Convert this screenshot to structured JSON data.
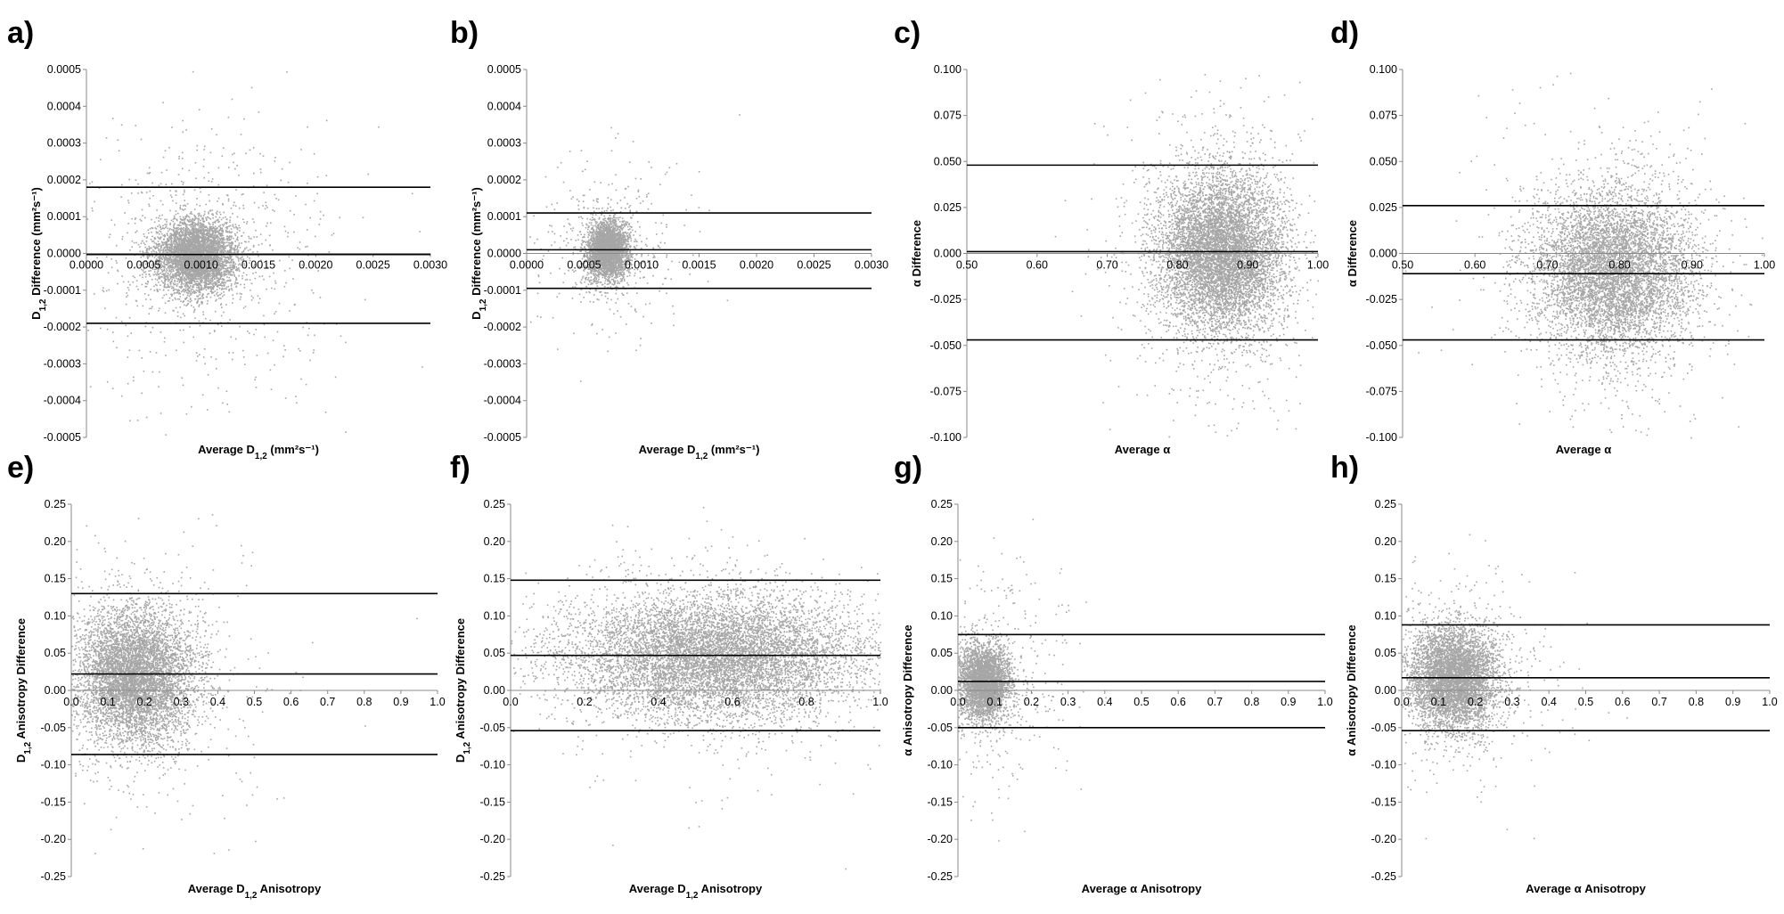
{
  "chart_data": [
    {
      "id": "a",
      "type": "scatter",
      "panel_label": "a)",
      "xlabel": "Average D1,2 (mm²s⁻¹)",
      "xlabel_parts": {
        "base": "Average D",
        "sub": "1,2",
        "tail": " (mm²s⁻¹)"
      },
      "ylabel": "D1,2 Difference (mm²s⁻¹)",
      "ylabel_parts": {
        "base": "D",
        "sub": "1,2",
        "tail": " Difference (mm²s⁻¹)"
      },
      "xlim": [
        0,
        0.003
      ],
      "ylim": [
        -0.0005,
        0.0005
      ],
      "xticks": [
        0,
        0.0005,
        0.001,
        0.0015,
        0.002,
        0.0025,
        0.003
      ],
      "xtick_labels": [
        "0.0000",
        "0.0005",
        "0.0010",
        "0.0015",
        "0.0020",
        "0.0025",
        "0.0030"
      ],
      "yticks": [
        0.0005,
        0.0004,
        0.0003,
        0.0002,
        0.0001,
        0,
        -0.0001,
        -0.0002,
        -0.0003,
        -0.0004,
        -0.0005
      ],
      "ytick_labels": [
        "0.0005",
        "0.0004",
        "0.0003",
        "0.0002",
        "0.0001",
        "0.0000",
        "-0.0001",
        "-0.0002",
        "-0.0003",
        "-0.0004",
        "-0.0005"
      ],
      "reference_lines": [
        0.00018,
        -3e-06,
        -0.00019
      ],
      "cloud": {
        "cx": 0.00095,
        "cy": -5e-06,
        "sx": 0.00018,
        "sy": 5e-05,
        "n": 4500,
        "scatter_n": 700,
        "scatter_sx": 0.0006,
        "scatter_sy": 0.00018
      }
    },
    {
      "id": "b",
      "type": "scatter",
      "panel_label": "b)",
      "xlabel": "Average D1,2 (mm²s⁻¹)",
      "xlabel_parts": {
        "base": "Average D",
        "sub": "1,2",
        "tail": " (mm²s⁻¹)"
      },
      "ylabel": "D1,2 Difference (mm²s⁻¹)",
      "ylabel_parts": {
        "base": "D",
        "sub": "1,2",
        "tail": " Difference (mm²s⁻¹)"
      },
      "xlim": [
        0,
        0.003
      ],
      "ylim": [
        -0.0005,
        0.0005
      ],
      "xticks": [
        0,
        0.0005,
        0.001,
        0.0015,
        0.002,
        0.0025,
        0.003
      ],
      "xtick_labels": [
        "0.0000",
        "0.0005",
        "0.0010",
        "0.0015",
        "0.0020",
        "0.0025",
        "0.0030"
      ],
      "yticks": [
        0.0005,
        0.0004,
        0.0003,
        0.0002,
        0.0001,
        0,
        -0.0001,
        -0.0002,
        -0.0003,
        -0.0004,
        -0.0005
      ],
      "ytick_labels": [
        "0.0005",
        "0.0004",
        "0.0003",
        "0.0002",
        "0.0001",
        "0.0000",
        "-0.0001",
        "-0.0002",
        "-0.0003",
        "-0.0004",
        "-0.0005"
      ],
      "reference_lines": [
        0.00011,
        1e-05,
        -9.5e-05
      ],
      "cloud": {
        "cx": 0.0007,
        "cy": 1e-05,
        "sx": 9e-05,
        "sy": 4e-05,
        "n": 3000,
        "scatter_n": 400,
        "scatter_sx": 0.00035,
        "scatter_sy": 0.00012
      }
    },
    {
      "id": "c",
      "type": "scatter",
      "panel_label": "c)",
      "xlabel": "Average α",
      "ylabel": "α Difference",
      "xlim": [
        0.5,
        1.0
      ],
      "ylim": [
        -0.1,
        0.1
      ],
      "xticks": [
        0.5,
        0.6,
        0.7,
        0.8,
        0.9,
        1.0
      ],
      "xtick_labels": [
        "0.50",
        "0.60",
        "0.70",
        "0.80",
        "0.90",
        "1.00"
      ],
      "yticks": [
        0.1,
        0.075,
        0.05,
        0.025,
        0,
        -0.025,
        -0.05,
        -0.075,
        -0.1
      ],
      "ytick_labels": [
        "0.100",
        "0.075",
        "0.050",
        "0.025",
        "0.000",
        "-0.025",
        "-0.050",
        "-0.075",
        "-0.100"
      ],
      "reference_lines": [
        0.048,
        0.001,
        -0.047
      ],
      "cloud": {
        "cx": 0.86,
        "cy": 0.0,
        "sx": 0.045,
        "sy": 0.022,
        "n": 7000,
        "scatter_n": 600,
        "scatter_sx": 0.08,
        "scatter_sy": 0.05
      }
    },
    {
      "id": "d",
      "type": "scatter",
      "panel_label": "d)",
      "xlabel": "Average α",
      "ylabel": "α Difference",
      "xlim": [
        0.5,
        1.0
      ],
      "ylim": [
        -0.1,
        0.1
      ],
      "xticks": [
        0.5,
        0.6,
        0.7,
        0.8,
        0.9,
        1.0
      ],
      "xtick_labels": [
        "0.50",
        "0.60",
        "0.70",
        "0.80",
        "0.90",
        "1.00"
      ],
      "yticks": [
        0.1,
        0.075,
        0.05,
        0.025,
        0,
        -0.025,
        -0.05,
        -0.075,
        -0.1
      ],
      "ytick_labels": [
        "0.100",
        "0.075",
        "0.050",
        "0.025",
        "0.000",
        "-0.025",
        "-0.050",
        "-0.075",
        "-0.100"
      ],
      "reference_lines": [
        0.026,
        -0.011,
        -0.047
      ],
      "cloud": {
        "cx": 0.79,
        "cy": -0.01,
        "sx": 0.055,
        "sy": 0.022,
        "n": 6000,
        "scatter_n": 600,
        "scatter_sx": 0.09,
        "scatter_sy": 0.045
      }
    },
    {
      "id": "e",
      "type": "scatter",
      "panel_label": "e)",
      "xlabel": "Average D1,2 Anisotropy",
      "xlabel_parts": {
        "base": "Average D",
        "sub": "1,2",
        "tail": " Anisotropy"
      },
      "ylabel": "D1,2 Anisotropy Difference",
      "ylabel_parts": {
        "base": "D",
        "sub": "1,2",
        "tail": " Anisotropy Difference"
      },
      "xlim": [
        0,
        1.0
      ],
      "ylim": [
        -0.25,
        0.25
      ],
      "xticks": [
        0,
        0.1,
        0.2,
        0.3,
        0.4,
        0.5,
        0.6,
        0.7,
        0.8,
        0.9,
        1.0
      ],
      "xtick_labels": [
        "0.0",
        "0.1",
        "0.2",
        "0.3",
        "0.4",
        "0.5",
        "0.6",
        "0.7",
        "0.8",
        "0.9",
        "1.0"
      ],
      "yticks": [
        0.25,
        0.2,
        0.15,
        0.1,
        0.05,
        0,
        -0.05,
        -0.1,
        -0.15,
        -0.2,
        -0.25
      ],
      "ytick_labels": [
        "0.25",
        "0.20",
        "0.15",
        "0.10",
        "0.05",
        "0.00",
        "-0.05",
        "-0.10",
        "-0.15",
        "-0.20",
        "-0.25"
      ],
      "reference_lines": [
        0.13,
        0.022,
        -0.086
      ],
      "cloud": {
        "cx": 0.17,
        "cy": 0.02,
        "sx": 0.08,
        "sy": 0.045,
        "n": 6000,
        "scatter_n": 600,
        "scatter_sx": 0.2,
        "scatter_sy": 0.09
      }
    },
    {
      "id": "f",
      "type": "scatter",
      "panel_label": "f)",
      "xlabel": "Average D1,2 Anisotropy",
      "xlabel_parts": {
        "base": "Average D",
        "sub": "1,2",
        "tail": " Anisotropy"
      },
      "ylabel": "D1,2 Anisotropy Difference",
      "ylabel_parts": {
        "base": "D",
        "sub": "1,2",
        "tail": " Anisotropy Difference"
      },
      "xlim": [
        0,
        1.0
      ],
      "ylim": [
        -0.25,
        0.25
      ],
      "xticks": [
        0,
        0.2,
        0.4,
        0.6,
        0.8,
        1.0
      ],
      "xtick_labels": [
        "0.0",
        "0.2",
        "0.4",
        "0.6",
        "0.8",
        "1.0"
      ],
      "yticks": [
        0.25,
        0.2,
        0.15,
        0.1,
        0.05,
        0,
        -0.05,
        -0.1,
        -0.15,
        -0.2,
        -0.25
      ],
      "ytick_labels": [
        "0.25",
        "0.20",
        "0.15",
        "0.10",
        "0.05",
        "0.00",
        "-0.05",
        "-0.10",
        "-0.15",
        "-0.20",
        "-0.25"
      ],
      "reference_lines": [
        0.148,
        0.047,
        -0.054
      ],
      "cloud": {
        "cx": 0.55,
        "cy": 0.047,
        "sx": 0.2,
        "sy": 0.042,
        "n": 8000,
        "scatter_n": 500,
        "scatter_sx": 0.25,
        "scatter_sy": 0.08
      }
    },
    {
      "id": "g",
      "type": "scatter",
      "panel_label": "g)",
      "xlabel": "Average α Anisotropy",
      "ylabel": "α Anisotropy Difference",
      "xlim": [
        0,
        1.0
      ],
      "ylim": [
        -0.25,
        0.25
      ],
      "xticks": [
        0,
        0.1,
        0.2,
        0.3,
        0.4,
        0.5,
        0.6,
        0.7,
        0.8,
        0.9,
        1.0
      ],
      "xtick_labels": [
        "0.0",
        "0.1",
        "0.2",
        "0.3",
        "0.4",
        "0.5",
        "0.6",
        "0.7",
        "0.8",
        "0.9",
        "1.0"
      ],
      "yticks": [
        0.25,
        0.2,
        0.15,
        0.1,
        0.05,
        0,
        -0.05,
        -0.1,
        -0.15,
        -0.2,
        -0.25
      ],
      "ytick_labels": [
        "0.25",
        "0.20",
        "0.15",
        "0.10",
        "0.05",
        "0.00",
        "-0.05",
        "-0.10",
        "-0.15",
        "-0.20",
        "-0.25"
      ],
      "reference_lines": [
        0.075,
        0.012,
        -0.05
      ],
      "cloud": {
        "cx": 0.07,
        "cy": 0.012,
        "sx": 0.035,
        "sy": 0.025,
        "n": 3500,
        "scatter_n": 500,
        "scatter_sx": 0.12,
        "scatter_sy": 0.08
      }
    },
    {
      "id": "h",
      "type": "scatter",
      "panel_label": "h)",
      "xlabel": "Average α Anisotropy",
      "ylabel": "α Anisotropy Difference",
      "xlim": [
        0,
        1.0
      ],
      "ylim": [
        -0.25,
        0.25
      ],
      "xticks": [
        0,
        0.1,
        0.2,
        0.3,
        0.4,
        0.5,
        0.6,
        0.7,
        0.8,
        0.9,
        1.0
      ],
      "xtick_labels": [
        "0.0",
        "0.1",
        "0.2",
        "0.3",
        "0.4",
        "0.5",
        "0.6",
        "0.7",
        "0.8",
        "0.9",
        "1.0"
      ],
      "yticks": [
        0.25,
        0.2,
        0.15,
        0.1,
        0.05,
        0,
        -0.05,
        -0.1,
        -0.15,
        -0.2,
        -0.25
      ],
      "ytick_labels": [
        "0.25",
        "0.20",
        "0.15",
        "0.10",
        "0.05",
        "0.00",
        "-0.05",
        "-0.10",
        "-0.15",
        "-0.20",
        "-0.25"
      ],
      "reference_lines": [
        0.088,
        0.017,
        -0.054
      ],
      "cloud": {
        "cx": 0.14,
        "cy": 0.018,
        "sx": 0.06,
        "sy": 0.035,
        "n": 5000,
        "scatter_n": 500,
        "scatter_sx": 0.15,
        "scatter_sy": 0.07
      }
    }
  ]
}
